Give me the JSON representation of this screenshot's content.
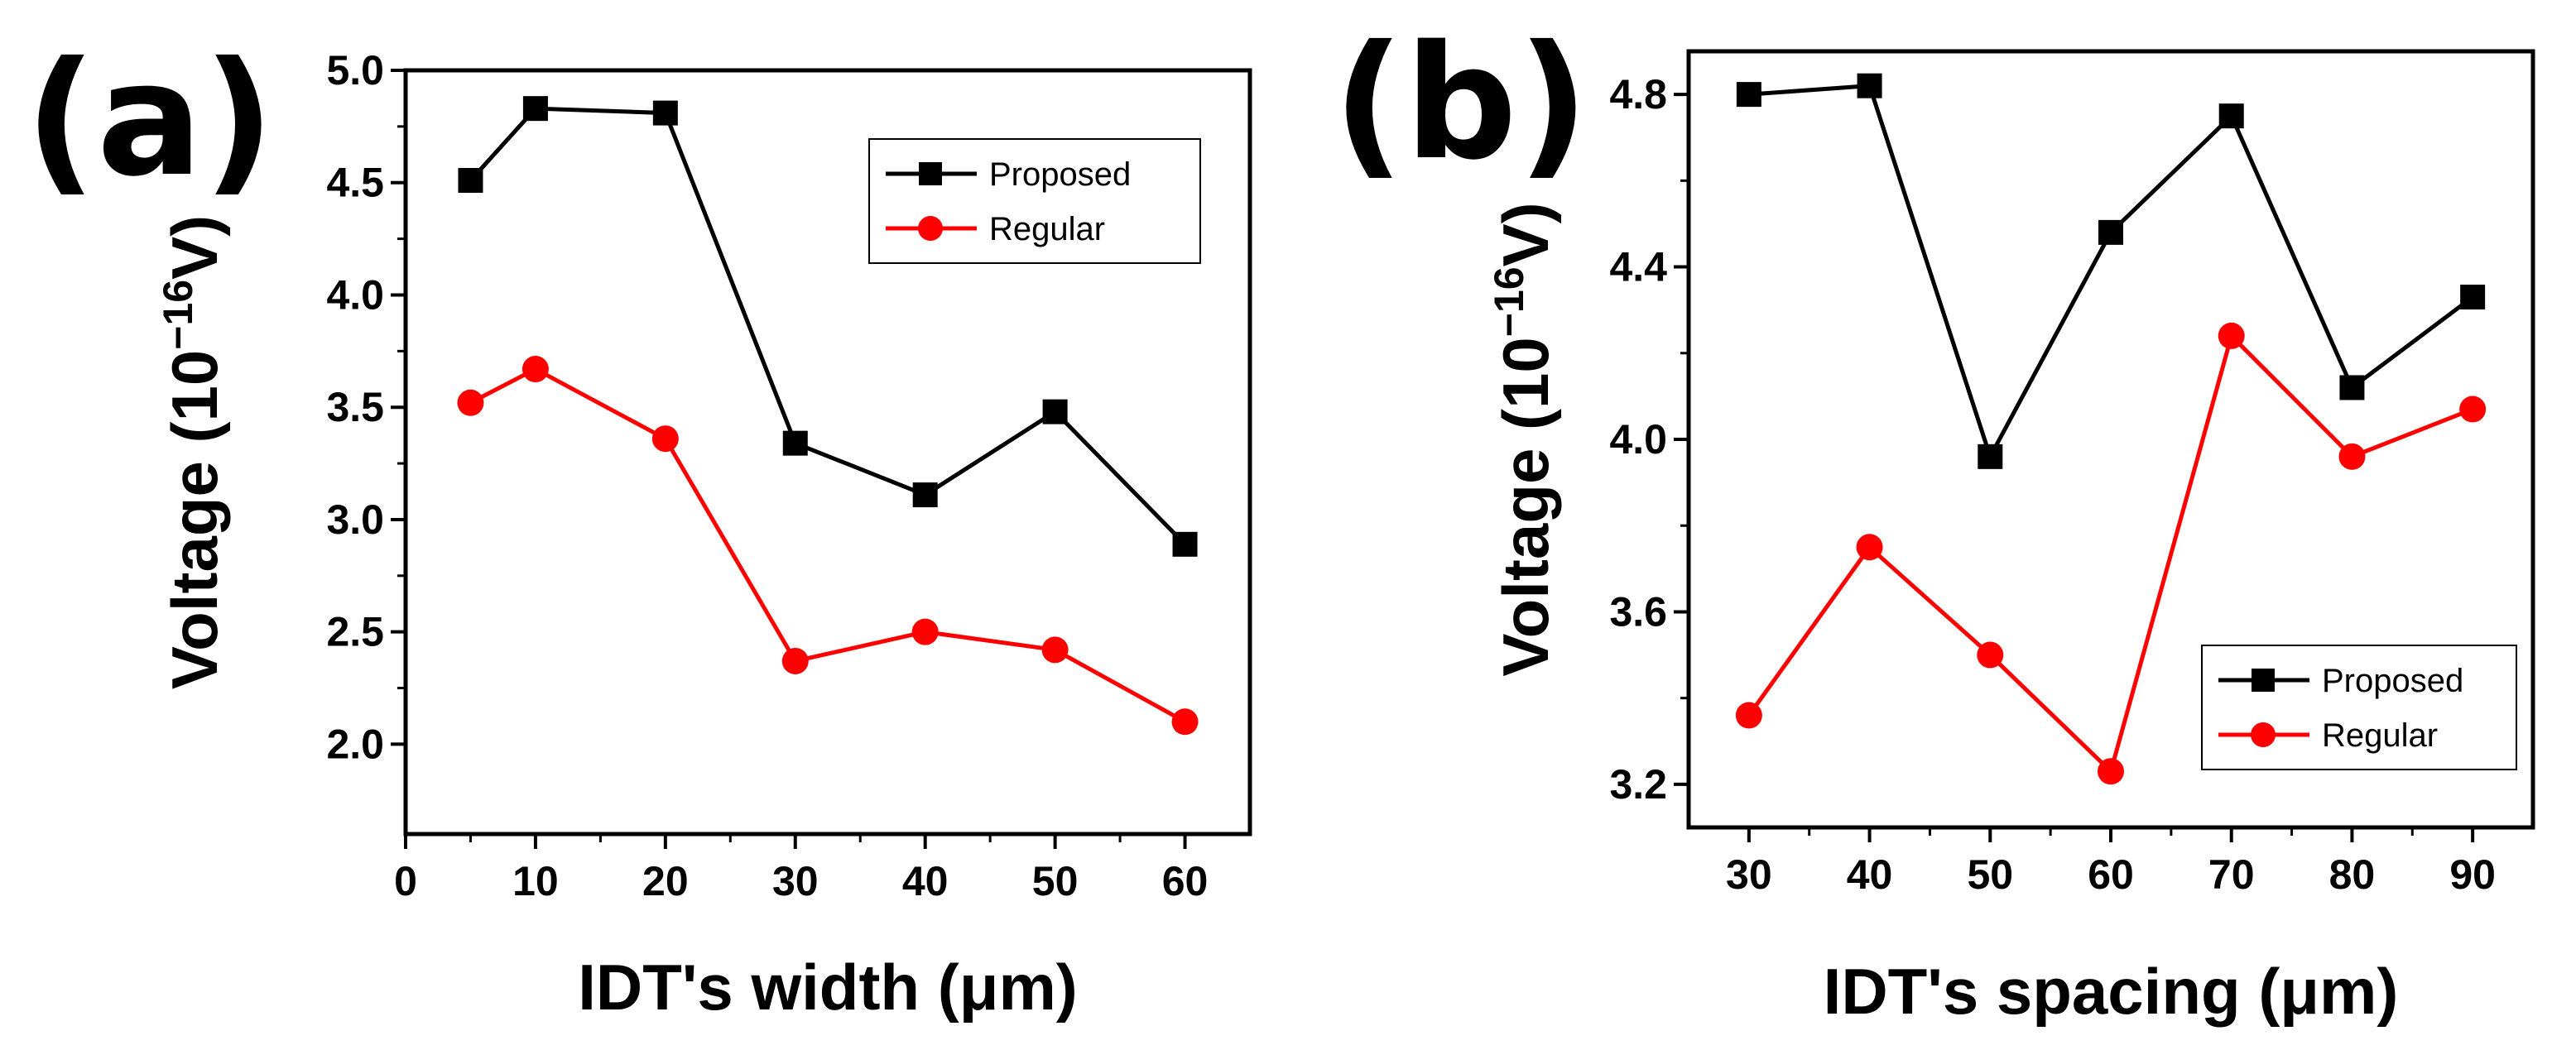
{
  "chart_data": [
    {
      "type": "line",
      "panel": "(a)",
      "xlabel": "IDT's width (μm)",
      "ylabel": "Voltage (10",
      "ylabel_exponent": "−16",
      "ylabel_unit": "V)",
      "xlim": [
        0,
        65
      ],
      "ylim": [
        1.6,
        5.0
      ],
      "xticks": [
        0,
        10,
        20,
        30,
        40,
        50,
        60
      ],
      "xtick_labels": [
        "0",
        "10",
        "20",
        "30",
        "40",
        "50",
        "60"
      ],
      "yticks": [
        2.0,
        2.5,
        3.0,
        3.5,
        4.0,
        4.5,
        5.0
      ],
      "ytick_labels": [
        "2.0",
        "2.5",
        "3.0",
        "3.5",
        "4.0",
        "4.5",
        "5.0"
      ],
      "grid": false,
      "legend_position": "top-right",
      "x": [
        5,
        10,
        20,
        30,
        40,
        50,
        60
      ],
      "series": [
        {
          "name": "Proposed",
          "color": "#000000",
          "marker": "square",
          "values": [
            4.51,
            4.83,
            4.81,
            3.34,
            3.11,
            3.48,
            2.89
          ]
        },
        {
          "name": "Regular",
          "color": "#ff0000",
          "marker": "circle",
          "values": [
            3.52,
            3.67,
            3.36,
            2.37,
            2.5,
            2.42,
            2.1
          ]
        }
      ]
    },
    {
      "type": "line",
      "panel": "(b)",
      "xlabel": "IDT's spacing (μm)",
      "ylabel": "Voltage (10",
      "ylabel_exponent": "−16",
      "ylabel_unit": "V)",
      "xlim": [
        25,
        95
      ],
      "ylim": [
        3.1,
        4.9
      ],
      "xticks": [
        30,
        40,
        50,
        60,
        70,
        80,
        90
      ],
      "xtick_labels": [
        "30",
        "40",
        "50",
        "60",
        "70",
        "80",
        "90"
      ],
      "yticks": [
        3.2,
        3.6,
        4.0,
        4.4,
        4.8
      ],
      "ytick_labels": [
        "3.2",
        "3.6",
        "4.0",
        "4.4",
        "4.8"
      ],
      "grid": false,
      "legend_position": "bottom-right",
      "x": [
        30,
        40,
        50,
        60,
        70,
        80,
        90
      ],
      "series": [
        {
          "name": "Proposed",
          "color": "#000000",
          "marker": "square",
          "values": [
            4.8,
            4.82,
            3.96,
            4.48,
            4.75,
            4.12,
            4.33
          ]
        },
        {
          "name": "Regular",
          "color": "#ff0000",
          "marker": "circle",
          "values": [
            3.36,
            3.75,
            3.5,
            3.23,
            4.24,
            3.96,
            4.07
          ]
        }
      ]
    }
  ]
}
